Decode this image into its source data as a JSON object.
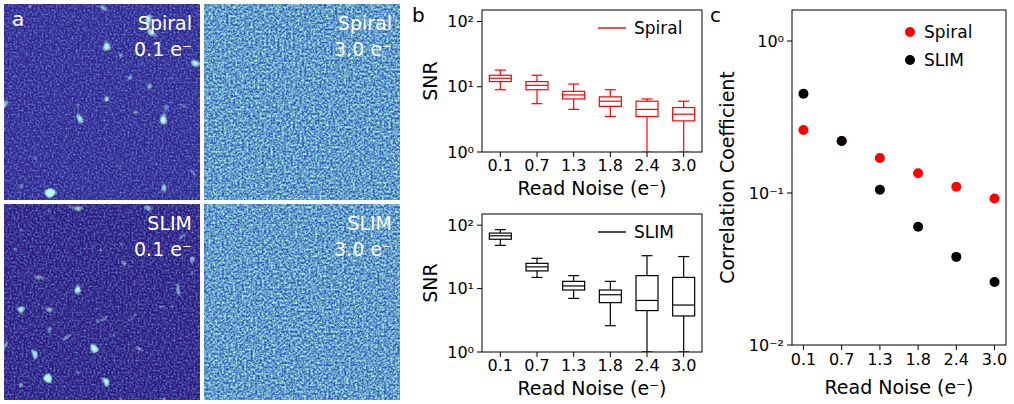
{
  "image_panel": {
    "panel_label": "a",
    "images": [
      {
        "method": "Spiral",
        "read_noise": "0.1 e⁻"
      },
      {
        "method": "Spiral",
        "read_noise": "3.0 e⁻"
      },
      {
        "method": "SLIM",
        "read_noise": "0.1 e⁻"
      },
      {
        "method": "SLIM",
        "read_noise": "3.0 e⁻"
      }
    ]
  },
  "chart_data": [
    {
      "type": "box",
      "panel_label": "b",
      "x_label": "Read Noise (e⁻)",
      "y_label": "SNR",
      "categories": [
        "0.1",
        "0.7",
        "1.3",
        "1.8",
        "2.4",
        "3.0"
      ],
      "log": "y",
      "ylim": [
        1,
        150
      ],
      "yticks": [
        {
          "value": 1,
          "label": "10⁰"
        },
        {
          "value": 10,
          "label": "10¹"
        },
        {
          "value": 100,
          "label": "10²"
        }
      ],
      "legend": "upper right",
      "series": [
        {
          "name": "Spiral",
          "color": "#ff0000",
          "whisker_low": [
            9,
            5.5,
            4.5,
            3.5,
            1,
            1
          ],
          "q1": [
            12,
            9,
            6.5,
            5,
            3.5,
            3
          ],
          "median": [
            13.5,
            10.5,
            7.5,
            6,
            4.5,
            3.8
          ],
          "q3": [
            15,
            12,
            8.5,
            7,
            6,
            4.8
          ],
          "whisker_high": [
            18,
            15,
            11,
            9,
            6.5,
            6
          ]
        }
      ]
    },
    {
      "type": "box",
      "x_label": "Read Noise (e⁻)",
      "y_label": "SNR",
      "categories": [
        "0.1",
        "0.7",
        "1.3",
        "1.8",
        "2.4",
        "3.0"
      ],
      "log": "y",
      "ylim": [
        1,
        150
      ],
      "yticks": [
        {
          "value": 1,
          "label": "10⁰"
        },
        {
          "value": 10,
          "label": "10¹"
        },
        {
          "value": 100,
          "label": "10²"
        }
      ],
      "legend": "upper right",
      "series": [
        {
          "name": "SLIM",
          "color": "#000000",
          "whisker_low": [
            48,
            15,
            7,
            2.6,
            1,
            1
          ],
          "q1": [
            60,
            19,
            9.5,
            6,
            4.5,
            3.7
          ],
          "median": [
            68,
            22,
            11,
            8,
            6.5,
            5.5
          ],
          "q3": [
            75,
            25,
            13,
            9.5,
            16,
            15
          ],
          "whisker_high": [
            85,
            30,
            16,
            13,
            33,
            32
          ]
        }
      ]
    },
    {
      "type": "scatter",
      "panel_label": "c",
      "x_label": "Read Noise (e⁻)",
      "y_label": "Correlation Coefficient",
      "categories": [
        "0.1",
        "0.7",
        "1.3",
        "1.8",
        "2.4",
        "3.0"
      ],
      "log": "y",
      "ylim": [
        0.01,
        1.6
      ],
      "yticks": [
        {
          "value": 0.01,
          "label": "10⁻²"
        },
        {
          "value": 0.1,
          "label": "10⁻¹"
        },
        {
          "value": 1,
          "label": "10⁰"
        }
      ],
      "legend": "upper right",
      "series": [
        {
          "name": "Spiral",
          "color": "#ff0000",
          "marker": "circle",
          "values": [
            0.26,
            0.22,
            0.17,
            0.135,
            0.11,
            0.092
          ]
        },
        {
          "name": "SLIM",
          "color": "#000000",
          "marker": "circle",
          "values": [
            0.45,
            0.22,
            0.105,
            0.06,
            0.038,
            0.026
          ]
        }
      ]
    }
  ]
}
